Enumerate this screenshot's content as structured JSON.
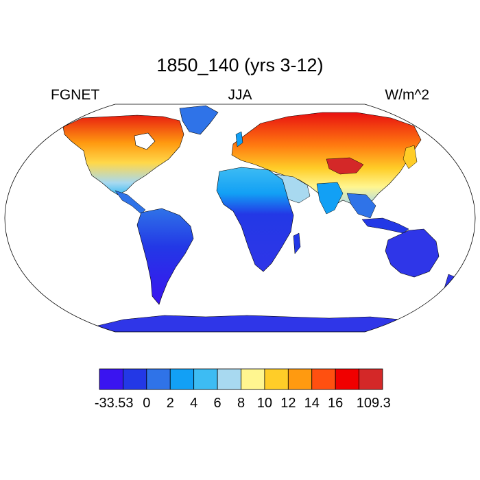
{
  "title": "1850_140 (yrs 3-12)",
  "variable": "FGNET",
  "season": "JJA",
  "units": "W/m^2",
  "projection": "robinson",
  "colorbar": {
    "colors": [
      "#3a14f0",
      "#2338e6",
      "#2f73e8",
      "#12a0f5",
      "#3dbcf3",
      "#a8d9f0",
      "#fff690",
      "#ffcd28",
      "#ff9a10",
      "#ff5010",
      "#f00000",
      "#d42828"
    ],
    "labels": [
      "-33.53",
      "0",
      "2",
      "4",
      "6",
      "8",
      "10",
      "12",
      "14",
      "16",
      "109.3"
    ]
  },
  "palette_map": {
    "ocean": "#ffffff",
    "antarctica": "#2f36e8"
  }
}
